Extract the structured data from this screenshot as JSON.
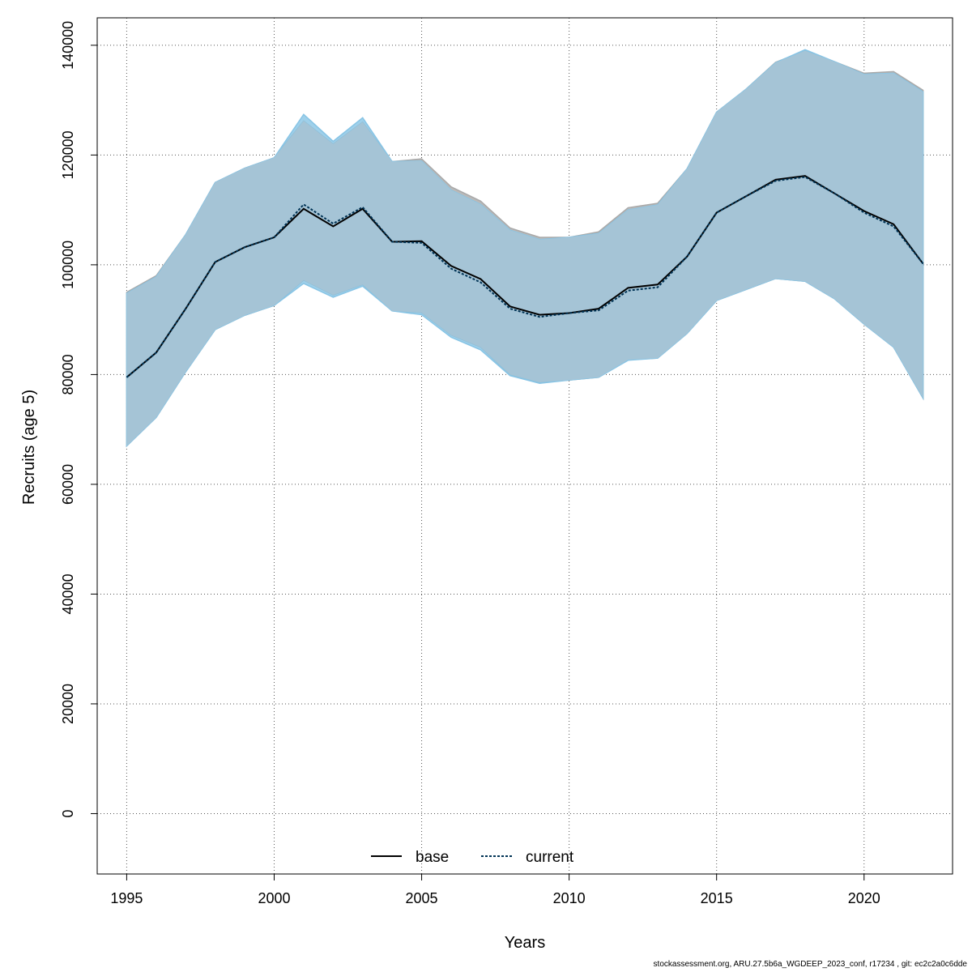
{
  "chart_data": {
    "type": "line",
    "xlabel": "Years",
    "ylabel": "Recruits (age 5)",
    "xlim": [
      1994,
      2023
    ],
    "ylim": [
      -11000,
      145000
    ],
    "xticks": [
      1995,
      2000,
      2005,
      2010,
      2015,
      2020
    ],
    "yticks": [
      0,
      20000,
      40000,
      60000,
      80000,
      100000,
      120000,
      140000
    ],
    "grid": true,
    "legend_position": "bottom-center",
    "x": [
      1995,
      1996,
      1997,
      1998,
      1999,
      2000,
      2001,
      2002,
      2003,
      2004,
      2005,
      2006,
      2007,
      2008,
      2009,
      2010,
      2011,
      2012,
      2013,
      2014,
      2015,
      2016,
      2017,
      2018,
      2019,
      2020,
      2021,
      2022
    ],
    "series": [
      {
        "name": "base",
        "line_style": "solid",
        "line_color": "#000000",
        "band_color": "#a9a9a9",
        "values": [
          79500,
          84000,
          92000,
          100500,
          103200,
          105000,
          110200,
          107000,
          110200,
          104200,
          104300,
          99800,
          97400,
          92400,
          90900,
          91200,
          92000,
          95800,
          96400,
          101500,
          109500,
          112500,
          115500,
          116200,
          113000,
          109800,
          107400,
          100200
        ],
        "lower": [
          67000,
          72200,
          80500,
          88200,
          90800,
          92600,
          97200,
          94500,
          96400,
          91600,
          91300,
          87200,
          85000,
          80000,
          78600,
          79000,
          79500,
          82700,
          83000,
          87500,
          93500,
          95500,
          97500,
          97000,
          93800,
          89200,
          85000,
          75700
        ],
        "upper": [
          95000,
          98000,
          105500,
          115000,
          117600,
          119500,
          126200,
          122000,
          126000,
          118800,
          119300,
          114200,
          111600,
          106700,
          105000,
          105000,
          106000,
          110400,
          111200,
          117500,
          127800,
          132000,
          136900,
          139000,
          137000,
          134900,
          135200,
          131800
        ]
      },
      {
        "name": "current",
        "line_style": "dotted",
        "line_color": "#003355",
        "band_color": "#87c4e5",
        "values": [
          79500,
          84000,
          92000,
          100500,
          103200,
          105000,
          111000,
          107500,
          110500,
          104200,
          104000,
          99300,
          96800,
          92000,
          90500,
          91200,
          91700,
          95300,
          95900,
          101500,
          109500,
          112500,
          115300,
          116000,
          113000,
          109500,
          107000,
          100200
        ],
        "lower": [
          67000,
          72200,
          80500,
          88200,
          90800,
          92600,
          96600,
          94100,
          96100,
          91600,
          90900,
          86800,
          84500,
          79800,
          78400,
          79000,
          79500,
          82600,
          83000,
          87500,
          93500,
          95500,
          97500,
          97000,
          93800,
          89200,
          85000,
          75700
        ],
        "upper": [
          94800,
          97800,
          105500,
          115000,
          117600,
          119500,
          127400,
          122500,
          126800,
          118800,
          118900,
          113600,
          111000,
          106300,
          104600,
          105000,
          105700,
          110000,
          110900,
          117500,
          127800,
          132000,
          136800,
          139200,
          137000,
          134700,
          134900,
          131500
        ]
      }
    ],
    "band_blend_color": "#a5c4d6",
    "footer": "stockassessment.org, ARU.27.5b6a_WGDEEP_2023_conf, r17234 , git: ec2c2a0c6dde"
  }
}
